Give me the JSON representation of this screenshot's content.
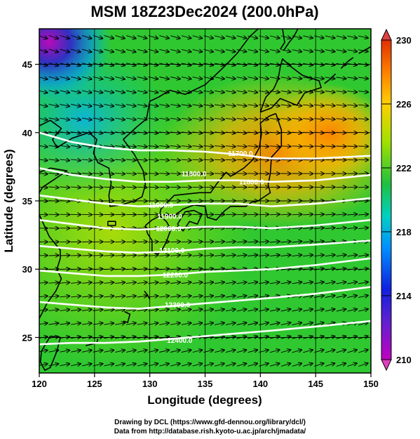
{
  "chart_data": {
    "type": "map",
    "title": "MSM 18Z23Dec2024 (200.0hPa)",
    "xlabel": "Longitude (degrees)",
    "ylabel": "Latitude  (degrees)",
    "xlim": [
      120,
      150
    ],
    "ylim": [
      22.4,
      47.6
    ],
    "x_ticks": [
      120,
      125,
      130,
      135,
      140,
      145,
      150
    ],
    "y_ticks": [
      25,
      30,
      35,
      40,
      45
    ],
    "shaded_field": {
      "colorbar_ticks": [
        210,
        214,
        218,
        222,
        226,
        230
      ],
      "colorbar_range": [
        210,
        230
      ],
      "colormap": [
        "#c000c0",
        "#2020d0",
        "#00a0ff",
        "#00d0a0",
        "#20c020",
        "#80d000",
        "#c0e000",
        "#ffb000",
        "#ff7000",
        "#e04000"
      ],
      "temperature_centers": [
        {
          "lon": 121.5,
          "lat": 46.5,
          "value": 212
        },
        {
          "lon": 124.0,
          "lat": 44.5,
          "value": 216
        },
        {
          "lon": 125.5,
          "lat": 41.5,
          "value": 219
        },
        {
          "lon": 130.0,
          "lat": 42.0,
          "value": 221
        },
        {
          "lon": 141.5,
          "lat": 39.5,
          "value": 227
        },
        {
          "lon": 145.0,
          "lat": 41.5,
          "value": 226
        },
        {
          "lon": 148.5,
          "lat": 39.0,
          "value": 227
        },
        {
          "lon": 138.0,
          "lat": 38.0,
          "value": 225
        },
        {
          "lon": 135.0,
          "lat": 30.0,
          "value": 222
        }
      ]
    },
    "contours": [
      {
        "value": 11700,
        "points": [
          [
            120,
            40.0
          ],
          [
            123,
            39.3
          ],
          [
            126,
            38.9
          ],
          [
            129,
            38.7
          ],
          [
            132,
            38.7
          ],
          [
            135,
            38.6
          ],
          [
            138,
            38.4
          ],
          [
            141,
            38.1
          ],
          [
            145,
            38.1
          ],
          [
            150,
            38.3
          ]
        ]
      },
      {
        "value": 11800,
        "points": [
          [
            120,
            37.4
          ],
          [
            123,
            36.9
          ],
          [
            126,
            36.6
          ],
          [
            129,
            36.4
          ],
          [
            132,
            36.4
          ],
          [
            135,
            36.5
          ],
          [
            138,
            36.5
          ],
          [
            141,
            36.4
          ],
          [
            145,
            36.5
          ],
          [
            150,
            36.9
          ]
        ]
      },
      {
        "value": 11900,
        "points": [
          [
            120,
            35.4
          ],
          [
            123,
            35.1
          ],
          [
            126,
            34.8
          ],
          [
            129,
            34.6
          ],
          [
            132,
            34.7
          ],
          [
            135,
            34.8
          ],
          [
            138,
            34.8
          ],
          [
            141,
            34.6
          ],
          [
            145,
            34.8
          ],
          [
            150,
            35.2
          ]
        ]
      },
      {
        "value": 12000,
        "points": [
          [
            120,
            33.6
          ],
          [
            123,
            33.3
          ],
          [
            126,
            33.0
          ],
          [
            129,
            32.9
          ],
          [
            132,
            33.0
          ],
          [
            135,
            33.1
          ],
          [
            138,
            33.1
          ],
          [
            141,
            33.0
          ],
          [
            145,
            33.2
          ],
          [
            150,
            33.6
          ]
        ]
      },
      {
        "value": 12100,
        "points": [
          [
            120,
            31.7
          ],
          [
            123,
            31.5
          ],
          [
            126,
            31.3
          ],
          [
            129,
            31.2
          ],
          [
            132,
            31.3
          ],
          [
            135,
            31.5
          ],
          [
            138,
            31.6
          ],
          [
            141,
            31.6
          ],
          [
            145,
            31.8
          ],
          [
            150,
            32.1
          ]
        ]
      },
      {
        "value": 12200,
        "points": [
          [
            120,
            29.9
          ],
          [
            123,
            29.7
          ],
          [
            126,
            29.5
          ],
          [
            129,
            29.5
          ],
          [
            132,
            29.6
          ],
          [
            135,
            29.8
          ],
          [
            138,
            29.9
          ],
          [
            141,
            30.0
          ],
          [
            145,
            30.3
          ],
          [
            150,
            30.8
          ]
        ]
      },
      {
        "value": 12300,
        "points": [
          [
            120,
            27.6
          ],
          [
            123,
            27.4
          ],
          [
            126,
            27.2
          ],
          [
            129,
            27.1
          ],
          [
            132,
            27.3
          ],
          [
            135,
            27.5
          ],
          [
            138,
            27.7
          ],
          [
            141,
            27.9
          ],
          [
            145,
            28.2
          ],
          [
            150,
            28.7
          ]
        ]
      },
      {
        "value": 12400,
        "points": [
          [
            120,
            24.5
          ],
          [
            123,
            24.6
          ],
          [
            126,
            24.6
          ],
          [
            129,
            24.7
          ],
          [
            132,
            24.9
          ],
          [
            135,
            25.1
          ],
          [
            138,
            25.3
          ],
          [
            141,
            25.5
          ],
          [
            145,
            25.8
          ],
          [
            150,
            26.2
          ]
        ]
      }
    ],
    "contour_labels": [
      {
        "text": "11700.0",
        "lon": 138.2,
        "lat": 38.3
      },
      {
        "text": "11800.0",
        "lon": 134.0,
        "lat": 36.8
      },
      {
        "text": "11800.0",
        "lon": 139.2,
        "lat": 36.2
      },
      {
        "text": "11900.0",
        "lon": 131.0,
        "lat": 34.5
      },
      {
        "text": "11900.0",
        "lon": 131.8,
        "lat": 33.7
      },
      {
        "text": "12000.0",
        "lon": 131.7,
        "lat": 32.8
      },
      {
        "text": "12100.0",
        "lon": 132.0,
        "lat": 31.2
      },
      {
        "text": "12200.0",
        "lon": 132.3,
        "lat": 29.4
      },
      {
        "text": "12300.0",
        "lon": 132.5,
        "lat": 27.2
      },
      {
        "text": "12400.0",
        "lon": 132.7,
        "lat": 24.6
      }
    ],
    "wind_field": {
      "grid_step_lon": 1.0,
      "grid_step_lat": 1.0,
      "direction_rule": "westerly, slight southward tilt in north, northward tilt in south"
    },
    "coastlines": [
      {
        "name": "hokkaido",
        "points": [
          [
            140.0,
            41.5
          ],
          [
            140.3,
            42.2
          ],
          [
            140.5,
            42.6
          ],
          [
            141.2,
            43.2
          ],
          [
            141.6,
            43.9
          ],
          [
            141.8,
            44.8
          ],
          [
            142.0,
            45.4
          ],
          [
            142.8,
            44.8
          ],
          [
            143.8,
            44.2
          ],
          [
            145.3,
            43.8
          ],
          [
            145.5,
            43.3
          ],
          [
            144.0,
            42.9
          ],
          [
            143.3,
            42.0
          ],
          [
            141.8,
            42.5
          ],
          [
            141.0,
            41.8
          ],
          [
            140.0,
            41.5
          ]
        ]
      },
      {
        "name": "honshu",
        "points": [
          [
            141.4,
            41.4
          ],
          [
            141.9,
            40.2
          ],
          [
            141.9,
            39.0
          ],
          [
            141.0,
            38.2
          ],
          [
            140.9,
            37.0
          ],
          [
            140.7,
            36.2
          ],
          [
            140.9,
            35.6
          ],
          [
            139.8,
            35.0
          ],
          [
            139.2,
            34.9
          ],
          [
            138.7,
            34.6
          ],
          [
            137.3,
            34.6
          ],
          [
            136.8,
            34.3
          ],
          [
            136.0,
            33.6
          ],
          [
            135.2,
            33.8
          ],
          [
            135.0,
            34.6
          ],
          [
            134.0,
            34.7
          ],
          [
            133.0,
            34.4
          ],
          [
            132.2,
            33.9
          ],
          [
            130.9,
            34.0
          ],
          [
            131.0,
            34.4
          ],
          [
            132.2,
            35.4
          ],
          [
            133.3,
            35.5
          ],
          [
            134.5,
            35.6
          ],
          [
            135.5,
            35.6
          ],
          [
            136.1,
            36.3
          ],
          [
            136.9,
            37.1
          ],
          [
            137.3,
            36.8
          ],
          [
            138.5,
            37.4
          ],
          [
            139.3,
            38.0
          ],
          [
            139.9,
            38.9
          ],
          [
            140.1,
            39.9
          ],
          [
            140.0,
            40.7
          ],
          [
            140.8,
            41.2
          ],
          [
            141.4,
            41.4
          ]
        ]
      },
      {
        "name": "shikoku",
        "points": [
          [
            132.5,
            33.3
          ],
          [
            133.0,
            32.8
          ],
          [
            133.6,
            33.5
          ],
          [
            134.3,
            33.3
          ],
          [
            134.7,
            34.0
          ],
          [
            134.0,
            34.3
          ],
          [
            133.2,
            34.2
          ],
          [
            132.5,
            33.3
          ]
        ]
      },
      {
        "name": "kyushu",
        "points": [
          [
            129.6,
            33.2
          ],
          [
            129.8,
            32.6
          ],
          [
            130.2,
            32.1
          ],
          [
            130.2,
            31.3
          ],
          [
            130.7,
            31.1
          ],
          [
            131.1,
            31.4
          ],
          [
            131.5,
            32.0
          ],
          [
            131.9,
            32.9
          ],
          [
            131.5,
            33.5
          ],
          [
            130.9,
            33.9
          ],
          [
            130.2,
            33.6
          ],
          [
            129.6,
            33.2
          ]
        ]
      },
      {
        "name": "korea",
        "points": [
          [
            124.5,
            40.0
          ],
          [
            125.2,
            39.5
          ],
          [
            124.9,
            38.5
          ],
          [
            125.3,
            37.8
          ],
          [
            126.3,
            37.4
          ],
          [
            126.5,
            36.3
          ],
          [
            126.3,
            35.4
          ],
          [
            126.4,
            34.6
          ],
          [
            127.4,
            34.7
          ],
          [
            128.6,
            35.0
          ],
          [
            129.3,
            35.3
          ],
          [
            129.6,
            36.2
          ],
          [
            129.4,
            37.2
          ],
          [
            128.6,
            38.4
          ],
          [
            127.6,
            39.5
          ],
          [
            128.8,
            40.4
          ],
          [
            129.7,
            41.0
          ],
          [
            130.0,
            42.3
          ]
        ]
      },
      {
        "name": "mainland-north",
        "points": [
          [
            130.0,
            42.3
          ],
          [
            130.8,
            42.6
          ],
          [
            131.8,
            43.1
          ],
          [
            133.2,
            42.8
          ],
          [
            135.0,
            43.5
          ],
          [
            136.7,
            44.8
          ],
          [
            137.9,
            45.8
          ],
          [
            139.0,
            47.0
          ],
          [
            139.8,
            47.6
          ]
        ]
      },
      {
        "name": "china-coast",
        "points": [
          [
            124.5,
            40.0
          ],
          [
            123.0,
            39.6
          ],
          [
            121.6,
            38.9
          ],
          [
            121.2,
            39.5
          ],
          [
            122.0,
            40.3
          ],
          [
            121.0,
            40.9
          ],
          [
            120.0,
            40.5
          ]
        ]
      },
      {
        "name": "shandong",
        "points": [
          [
            120.0,
            37.1
          ],
          [
            121.0,
            37.4
          ],
          [
            122.5,
            37.2
          ],
          [
            121.4,
            36.6
          ],
          [
            120.3,
            36.0
          ],
          [
            120.0,
            35.6
          ]
        ]
      },
      {
        "name": "china-east",
        "points": [
          [
            120.0,
            34.0
          ],
          [
            120.9,
            32.4
          ],
          [
            121.9,
            31.4
          ],
          [
            121.9,
            30.8
          ],
          [
            121.6,
            30.0
          ],
          [
            122.0,
            29.3
          ],
          [
            121.5,
            28.4
          ],
          [
            120.7,
            27.5
          ],
          [
            120.2,
            26.7
          ],
          [
            120.0,
            26.4
          ]
        ]
      },
      {
        "name": "taiwan",
        "points": [
          [
            121.0,
            25.1
          ],
          [
            121.9,
            25.0
          ],
          [
            121.6,
            24.0
          ],
          [
            121.0,
            22.8
          ],
          [
            120.5,
            22.6
          ],
          [
            120.1,
            23.2
          ],
          [
            120.2,
            24.0
          ],
          [
            121.0,
            25.1
          ]
        ]
      },
      {
        "name": "sakhalin",
        "points": [
          [
            141.8,
            46.1
          ],
          [
            142.2,
            46.6
          ],
          [
            142.0,
            47.6
          ]
        ]
      },
      {
        "name": "sakhalin-east",
        "points": [
          [
            143.4,
            47.6
          ],
          [
            143.0,
            47.0
          ],
          [
            142.6,
            46.6
          ],
          [
            142.1,
            46.0
          ]
        ]
      },
      {
        "name": "kuril-1",
        "points": [
          [
            145.8,
            43.6
          ],
          [
            146.3,
            43.9
          ],
          [
            146.8,
            44.3
          ]
        ]
      },
      {
        "name": "kuril-2",
        "points": [
          [
            147.3,
            44.7
          ],
          [
            147.9,
            45.2
          ],
          [
            148.4,
            45.5
          ]
        ]
      },
      {
        "name": "kuril-3",
        "points": [
          [
            148.9,
            45.8
          ],
          [
            149.6,
            46.1
          ],
          [
            150.0,
            46.3
          ]
        ]
      },
      {
        "name": "ryukyu-1",
        "points": [
          [
            129.5,
            28.4
          ],
          [
            129.8,
            28.1
          ],
          [
            130.0,
            27.8
          ]
        ]
      },
      {
        "name": "ryukyu-2",
        "points": [
          [
            127.7,
            26.9
          ],
          [
            128.2,
            26.7
          ],
          [
            128.0,
            26.1
          ],
          [
            127.6,
            26.2
          ]
        ]
      },
      {
        "name": "ryukyu-3",
        "points": [
          [
            125.3,
            24.9
          ],
          [
            125.2,
            24.6
          ],
          [
            124.2,
            24.4
          ]
        ]
      },
      {
        "name": "jeju",
        "points": [
          [
            126.2,
            33.5
          ],
          [
            126.9,
            33.5
          ],
          [
            126.9,
            33.2
          ],
          [
            126.2,
            33.2
          ],
          [
            126.2,
            33.5
          ]
        ]
      }
    ]
  },
  "credits": {
    "line1": "Drawing by DCL (https://www.gfd-dennou.org/library/dcl/)",
    "line2": "Data from http://database.rish.kyoto-u.ac.jp/arch/jmadata/"
  }
}
